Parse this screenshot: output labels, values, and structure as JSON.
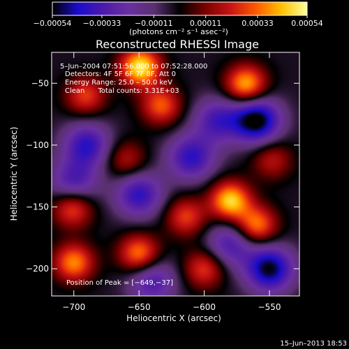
{
  "chart_data": {
    "type": "heatmap",
    "title": "Reconstructed RHESSI Image",
    "xlabel": "Heliocentric X (arcsec)",
    "ylabel": "Heliocentric Y (arcsec)",
    "xlim": [
      -717,
      -527
    ],
    "ylim": [
      -222,
      -25
    ],
    "x_ticks": [
      -700,
      -650,
      -600,
      -550
    ],
    "y_ticks": [
      -200,
      -150,
      -100,
      -50
    ],
    "x_tick_labels": [
      "−700",
      "−650",
      "−600",
      "−550"
    ],
    "y_tick_labels": [
      "−200",
      "−150",
      "−100",
      "−50"
    ],
    "colorbar": {
      "range": [
        -0.00054,
        0.00054
      ],
      "ticks": [
        -0.00054,
        -0.00033,
        -0.00011,
        0.00011,
        0.00033,
        0.00054
      ],
      "tick_labels": [
        "−0.00054",
        "−0.00033",
        "−0.00011",
        "0.00011",
        "0.00033",
        "0.00054"
      ],
      "unit_label": "(photons cm⁻² s⁻¹ asec⁻²)"
    },
    "annotations": {
      "time_range": "5–Jun–2004 07:51:56.000 to 07:52:28.000",
      "detectors": "Detectors: 4F 5F 6F 7F 8F, Att 0",
      "energy_range": "Energy Range: 25.0 – 50.0 keV",
      "clean_counts": "Clean      Total counts: 3.31E+03",
      "peak": "Position of Peak = [−649,−37]"
    },
    "peaks": [
      {
        "x": -649,
        "y": -37,
        "value": 0.00054
      },
      {
        "x": -568,
        "y": -51,
        "value": 0.00046
      },
      {
        "x": -691,
        "y": -60,
        "value": 0.0003
      },
      {
        "x": -633,
        "y": -68,
        "value": 0.00034
      },
      {
        "x": -580,
        "y": -145,
        "value": 0.0005
      },
      {
        "x": -701,
        "y": -151,
        "value": 0.00034
      },
      {
        "x": -614,
        "y": -158,
        "value": 0.0003
      },
      {
        "x": -660,
        "y": -112,
        "value": 0.00022
      },
      {
        "x": -560,
        "y": -165,
        "value": 0.0004
      },
      {
        "x": -700,
        "y": -195,
        "value": 0.0004
      },
      {
        "x": -650,
        "y": -188,
        "value": 0.0004
      },
      {
        "x": -600,
        "y": -200,
        "value": 0.0003
      },
      {
        "x": -548,
        "y": -112,
        "value": 0.00022
      }
    ],
    "troughs": [
      {
        "x": -560,
        "y": -80,
        "value": -0.00054
      },
      {
        "x": -550,
        "y": -200,
        "value": -0.0005
      },
      {
        "x": -690,
        "y": -100,
        "value": -0.00036
      },
      {
        "x": -650,
        "y": -140,
        "value": -0.00036
      },
      {
        "x": -610,
        "y": -110,
        "value": -0.00036
      },
      {
        "x": -700,
        "y": -130,
        "value": -0.0003
      },
      {
        "x": -590,
        "y": -80,
        "value": -0.0003
      },
      {
        "x": -640,
        "y": -210,
        "value": -0.0003
      },
      {
        "x": -580,
        "y": -180,
        "value": -0.0003
      }
    ],
    "grid": false,
    "colormap": [
      "#000000",
      "#1a0ccc",
      "#4c1aaa",
      "#6a30a0",
      "#5a3070",
      "#000000",
      "#7a0000",
      "#c81414",
      "#ff5a00",
      "#ffc000",
      "#ffff9a"
    ]
  },
  "footer": {
    "timestamp": "15–Jun–2013 18:53"
  }
}
